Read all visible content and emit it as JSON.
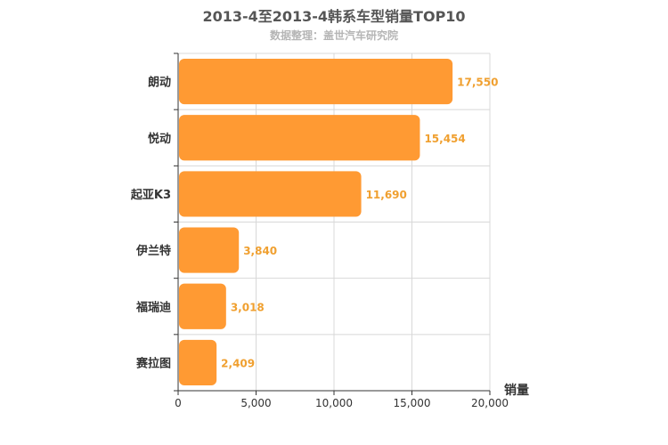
{
  "chart_data": {
    "type": "bar",
    "orientation": "horizontal",
    "title": "2013-4至2013-4韩系车型销量TOP10",
    "subtitle": "数据整理：盖世汽车研究院",
    "xlabel": "销量",
    "categories": [
      "朗动",
      "悦动",
      "起亚K3",
      "伊兰特",
      "福瑞迪",
      "赛拉图"
    ],
    "values": [
      17550,
      15454,
      11690,
      3840,
      3018,
      2409
    ],
    "value_labels": [
      "17,550",
      "15,454",
      "11,690",
      "3,840",
      "3,018",
      "2,409"
    ],
    "xlim": [
      0,
      20000
    ],
    "xticks": [
      0,
      5000,
      10000,
      15000,
      20000
    ],
    "xtick_labels": [
      "0",
      "5,000",
      "10,000",
      "15,000",
      "20,000"
    ],
    "bar_color": "#ff9a33",
    "grid": true,
    "legend": "none"
  }
}
